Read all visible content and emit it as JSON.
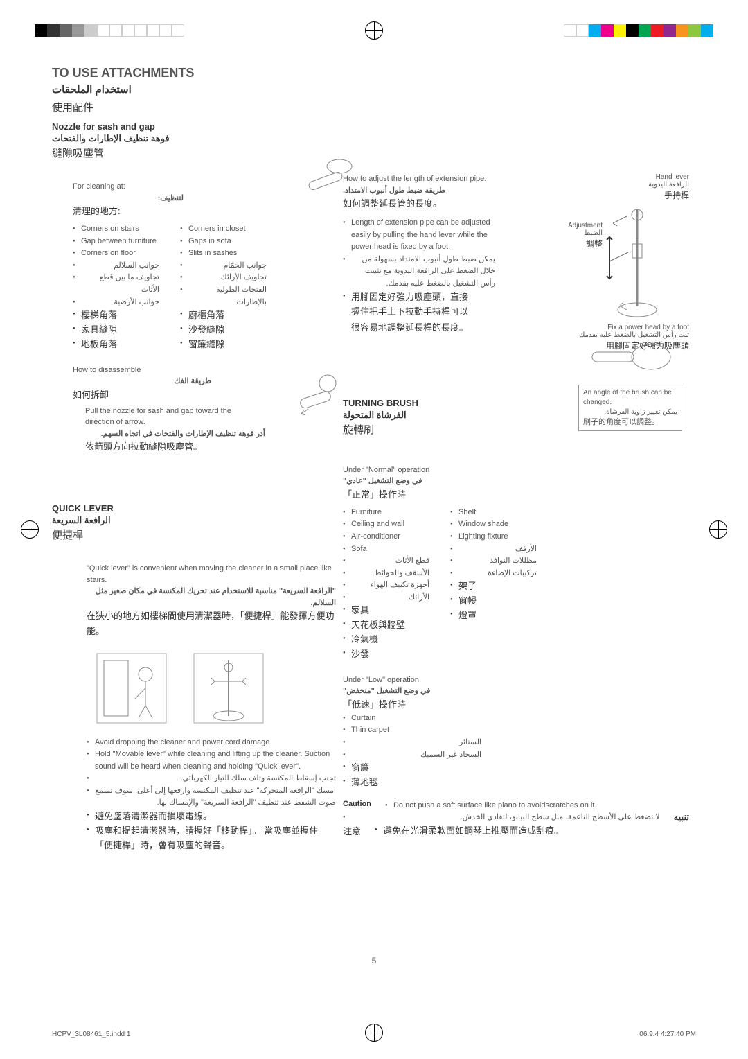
{
  "colors": {
    "bar_left": [
      "#000000",
      "#333333",
      "#666666",
      "#999999",
      "#cccccc",
      "#ffffff",
      "#ffffff",
      "#ffffff",
      "#ffffff",
      "#ffffff",
      "#ffffff",
      "#ffffff"
    ],
    "bar_right": [
      "#ffffff",
      "#ffffff",
      "#00aeef",
      "#ec008c",
      "#fff200",
      "#000000",
      "#00a651",
      "#ed1c24",
      "#92278f",
      "#f7941e",
      "#8dc63f",
      "#00adee"
    ]
  },
  "header": {
    "title_en": "TO USE ATTACHMENTS",
    "title_ar": "استخدام الملحقات",
    "title_cjk": "使用配件"
  },
  "nozzle": {
    "title_en": "Nozzle for sash and gap",
    "title_ar": "فوهة تنظيف الإطارات والفتحات",
    "title_cjk": "縫隙吸塵管",
    "clean_en": "For cleaning at:",
    "clean_ar": "لتنظيف:",
    "clean_cjk": "清理的地方:",
    "left_en": [
      "Corners on stairs",
      "Gap between furniture",
      "Corners on floor"
    ],
    "right_en": [
      "Corners in closet",
      "Gaps in sofa",
      "Slits in sashes"
    ],
    "left_ar": [
      "جوانب السلالم",
      "تجاويف ما بين قطع الأثاث",
      "جوانب الأرضية"
    ],
    "right_ar": [
      "جوانب الحمّام",
      "تجاويف الأرائك",
      "الفتحات الطولية بالإطارات"
    ],
    "left_cjk": [
      "樓梯角落",
      "家具縫隙",
      "地板角落"
    ],
    "right_cjk": [
      "廚櫃角落",
      "沙發縫隙",
      "窗簾縫隙"
    ],
    "dis_en": "How to disassemble",
    "dis_ar": "طريقة الفك",
    "dis_cjk": "如何拆卸",
    "dis_body_en": "Pull the nozzle for sash and gap toward the direction of arrow.",
    "dis_body_ar": "أدر فوهة تنظيف الإطارات والفتحات في اتجاه السهم.",
    "dis_body_cjk": "依箭頭方向拉動縫隙吸塵管。"
  },
  "quicklever": {
    "title_en": "QUICK LEVER",
    "title_ar": "الرافعة السريعة",
    "title_cjk": "便捷桿",
    "body_en": "\"Quick lever\" is convenient when moving the cleaner in a small place like stairs.",
    "body_ar": "\"الرافعة السريعة\" مناسبة للاستخدام عند تحريك المكنسة في مكان صغير مثل السلالم.",
    "body_cjk": "在狹小的地方如樓梯間使用清潔器時，「便捷桿」能發揮方便功能。",
    "tips_en": [
      "Avoid  dropping the cleaner and power cord damage.",
      "Hold \"Movable lever\" while cleaning and lifting up the cleaner.  Suction sound will be heard when cleaning and holding \"Quick lever\"."
    ],
    "tips_ar": [
      "تجنب إسقاط المكنسة وتلف سلك التيار الكهربائي.",
      "امسك \"الرافعة المتحركة\" عند تنظيف المكنسة وارفعها إلى أعلى. سوف تسمع صوت الشفط عند تنظيف \"الرافعة السريعة\" والإمساك بها."
    ],
    "tips_cjk": [
      "避免墜落清潔器而損壞電線。",
      "吸塵和提起清潔器時，請握好「移動桿」。  當吸塵並握住「便捷桿」時，會有吸塵的聲音。"
    ]
  },
  "extpipe": {
    "title_en": "How to adjust the length of extension pipe.",
    "title_ar": "طريقة ضبط طول أنبوب الامتداد.",
    "title_cjk": "如何調整延長管的長度。",
    "body_en": "Length of extension pipe can be adjusted easily by pulling the hand lever while the power head is fixed by a foot.",
    "body_ar": "يمكن ضبط طول أنبوب الامتداد بسهولة من خلال الضغط على الرافعة اليدوية مع تثبيت رأس التشغيل بالضغط عليه بقدمك.",
    "body_cjk1": "用腳固定好強力吸塵頭，直接",
    "body_cjk2": "握住把手上下拉動手持桿可以",
    "body_cjk3": "很容易地調整延長桿的長度。",
    "hand_en": "Hand lever",
    "hand_ar": "الرافعة اليدوية",
    "hand_cjk": "手持桿",
    "adj_en": "Adjustment",
    "adj_ar": "الضبط",
    "adj_cjk": "調整",
    "fix_en": "Fix a power head by a foot",
    "fix_ar": "ثبت رأس التشغيل بالضغط عليه بقدمك",
    "fix_cjk": "用腳固定好強力吸塵頭"
  },
  "brush": {
    "title_en": "TURNING BRUSH",
    "title_ar": "الفرشاة المتحولة",
    "title_cjk": "旋轉刷",
    "normal_en": "Under \"Normal\" operation",
    "normal_ar": "في وضع التشغيل \"عادي\"",
    "normal_cjk": "「正常」操作時",
    "n_left_en": [
      "Furniture",
      "Ceiling and wall",
      "Air-conditioner",
      "Sofa"
    ],
    "n_right_en": [
      "Shelf",
      "Window shade",
      "Lighting fixture"
    ],
    "n_left_ar": [
      "قطع الأثاث",
      "الأسقف والحوائط",
      "أجهزة تكييف الهواء",
      "الأرائك"
    ],
    "n_right_ar": [
      "الأرفف",
      "مظللات النوافذ",
      "تركيبات الإضاءة"
    ],
    "n_left_cjk": [
      "家具",
      "天花板與牆壁",
      "冷氣機",
      "沙發"
    ],
    "n_right_cjk": [
      "架子",
      "窗幔",
      "燈罩"
    ],
    "low_en": "Under \"Low\" operation",
    "low_ar": "في وضع التشغيل \"منخفض\"",
    "low_cjk": "「低速」操作時",
    "low_list_en": [
      "Curtain",
      "Thin carpet"
    ],
    "low_list_ar": [
      "الستائر",
      "السجاد غير السميك"
    ],
    "low_list_cjk": [
      "窗簾",
      "薄地毯"
    ],
    "caption_en": "An angle of the brush can be changed.",
    "caption_ar": "يمكن تغيير زاوية الفرشاة.",
    "caption_cjk": "刷子的角度可以調整。",
    "caution_label_en": "Caution",
    "caution_en": "Do not push a soft surface like piano to avoidscratches on it.",
    "caution_label_ar": "تنبيه",
    "caution_ar": "لا تضغط على الأسطح الناعمة، مثل سطح البيانو، لتفادي الخدش.",
    "caution_label_cjk": "注意",
    "caution_cjk": "避免在光滑柔軟面如鋼琴上推壓而造成刮痕。"
  },
  "footer": {
    "page": "5",
    "left": "HCPV_3L08461_5.indd   1",
    "right": "06.9.4   4:27:40 PM"
  }
}
